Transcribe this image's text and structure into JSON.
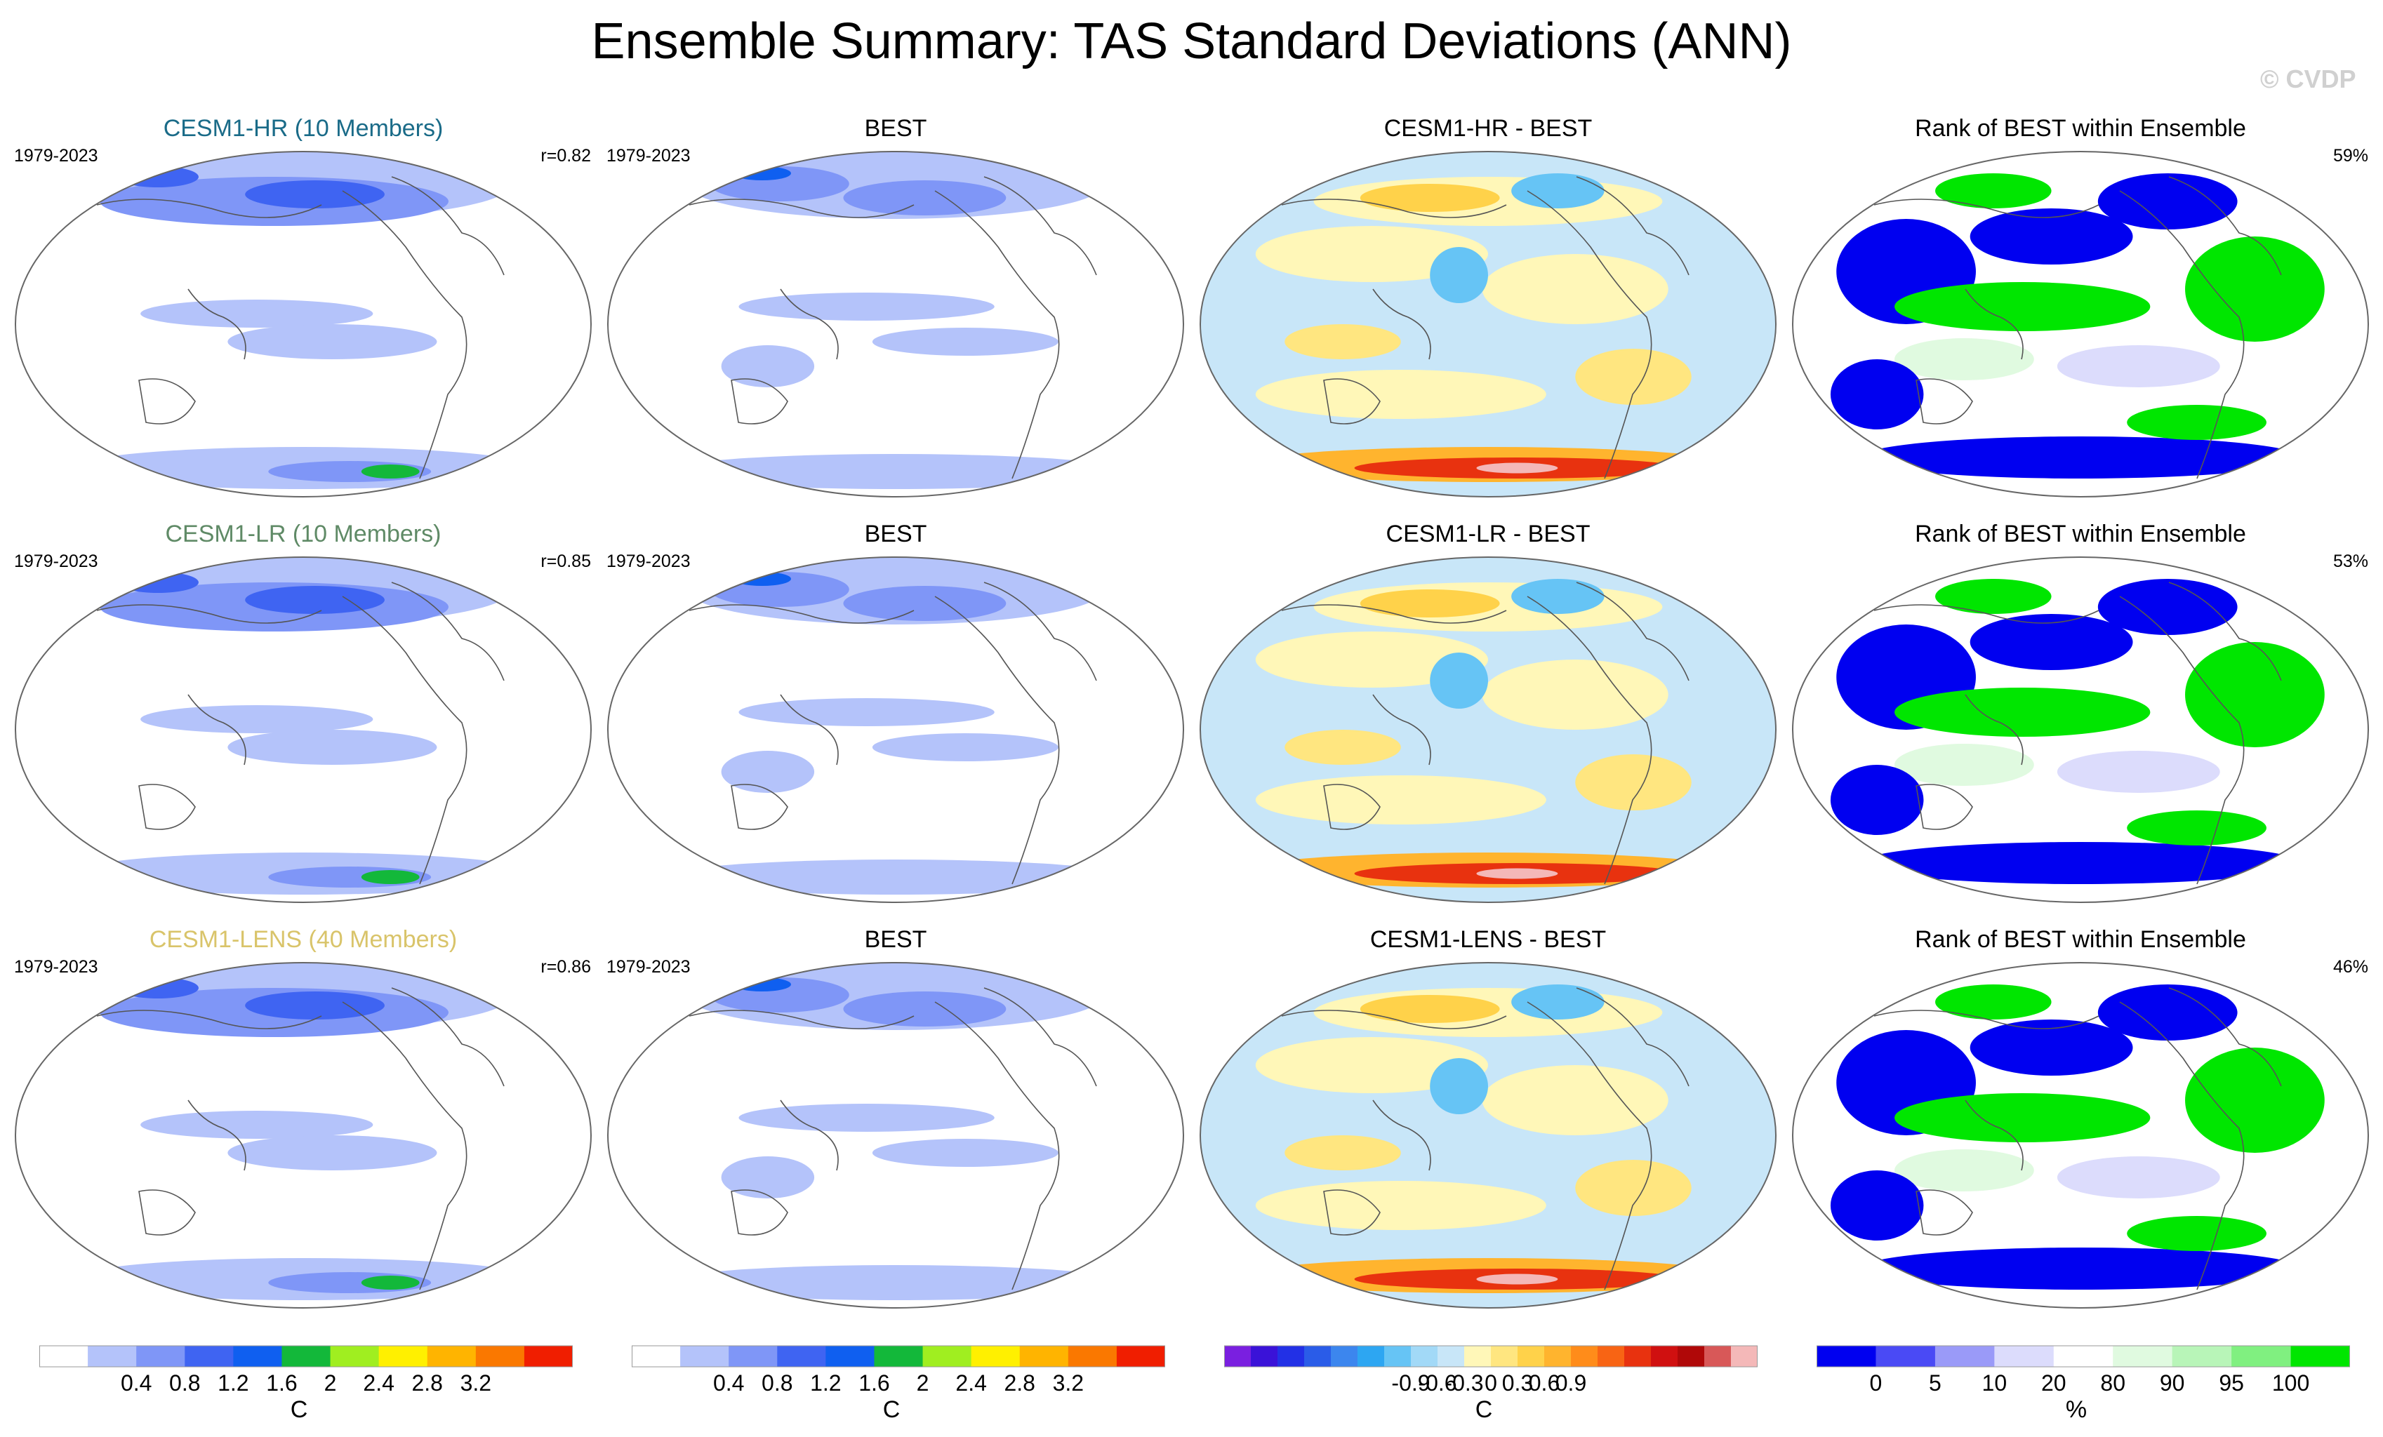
{
  "title": "Ensemble Summary: TAS Standard Deviations (ANN)",
  "watermark": "© CVDP",
  "chart_data": {
    "type": "heatmap",
    "title": "Ensemble Summary: TAS Standard Deviations (ANN)",
    "rows": [
      {
        "model": {
          "title": "CESM1-HR (10 Members)",
          "title_color": "#1a6b88",
          "period": "1979-2023",
          "stat": "r=0.82"
        },
        "obs": {
          "title": "BEST",
          "period": "1979-2023"
        },
        "diff": {
          "title": "CESM1-HR - BEST"
        },
        "rank": {
          "title": "Rank of BEST within Ensemble",
          "stat": "59%"
        }
      },
      {
        "model": {
          "title": "CESM1-LR (10 Members)",
          "title_color": "#5f8a66",
          "period": "1979-2023",
          "stat": "r=0.85"
        },
        "obs": {
          "title": "BEST",
          "period": "1979-2023"
        },
        "diff": {
          "title": "CESM1-LR - BEST"
        },
        "rank": {
          "title": "Rank of BEST within Ensemble",
          "stat": "53%"
        }
      },
      {
        "model": {
          "title": "CESM1-LENS (40 Members)",
          "title_color": "#d9c46a",
          "period": "1979-2023",
          "stat": "r=0.86"
        },
        "obs": {
          "title": "BEST",
          "period": "1979-2023"
        },
        "diff": {
          "title": "CESM1-LENS - BEST"
        },
        "rank": {
          "title": "Rank of BEST within Ensemble",
          "stat": "46%"
        }
      }
    ],
    "colorbars": [
      {
        "unit": "C",
        "colors": [
          "#ffffff",
          "#b4c3fa",
          "#7f96f7",
          "#3f64f2",
          "#0f5ff0",
          "#13b83a",
          "#a0ee20",
          "#fff000",
          "#ffb400",
          "#fa7800",
          "#f01e00"
        ],
        "ticks": [
          "0.4",
          "0.8",
          "1.2",
          "1.6",
          "2",
          "2.4",
          "2.8",
          "3.2"
        ]
      },
      {
        "unit": "C",
        "colors": [
          "#ffffff",
          "#b4c3fa",
          "#7f96f7",
          "#3f64f2",
          "#0f5ff0",
          "#13b83a",
          "#a0ee20",
          "#fff000",
          "#ffb400",
          "#fa7800",
          "#f01e00"
        ],
        "ticks": [
          "0.4",
          "0.8",
          "1.2",
          "1.6",
          "2",
          "2.4",
          "2.8",
          "3.2"
        ]
      },
      {
        "unit": "C",
        "colors": [
          "#7a1fe0",
          "#3a12d8",
          "#2230e6",
          "#2a5ce8",
          "#3c86ee",
          "#2da6f2",
          "#66c4f5",
          "#a2d9f7",
          "#c8e6f8",
          "#fff7b8",
          "#ffe680",
          "#ffd24a",
          "#ffb42e",
          "#ff8c1a",
          "#f86414",
          "#e8320f",
          "#d01010",
          "#b00808",
          "#d85858",
          "#f4b8b8"
        ],
        "ticks": [
          "-0.9",
          "-0.6",
          "-0.3",
          "0",
          "0.3",
          "0.6",
          "0.9"
        ]
      },
      {
        "unit": "%",
        "colors": [
          "#0000f0",
          "#4a4af5",
          "#9a9af8",
          "#dcdcfc",
          "#ffffff",
          "#e0fae0",
          "#b8f5b8",
          "#80f080",
          "#00e600"
        ],
        "ticks": [
          "0",
          "5",
          "10",
          "20",
          "80",
          "90",
          "95",
          "100"
        ]
      }
    ]
  }
}
